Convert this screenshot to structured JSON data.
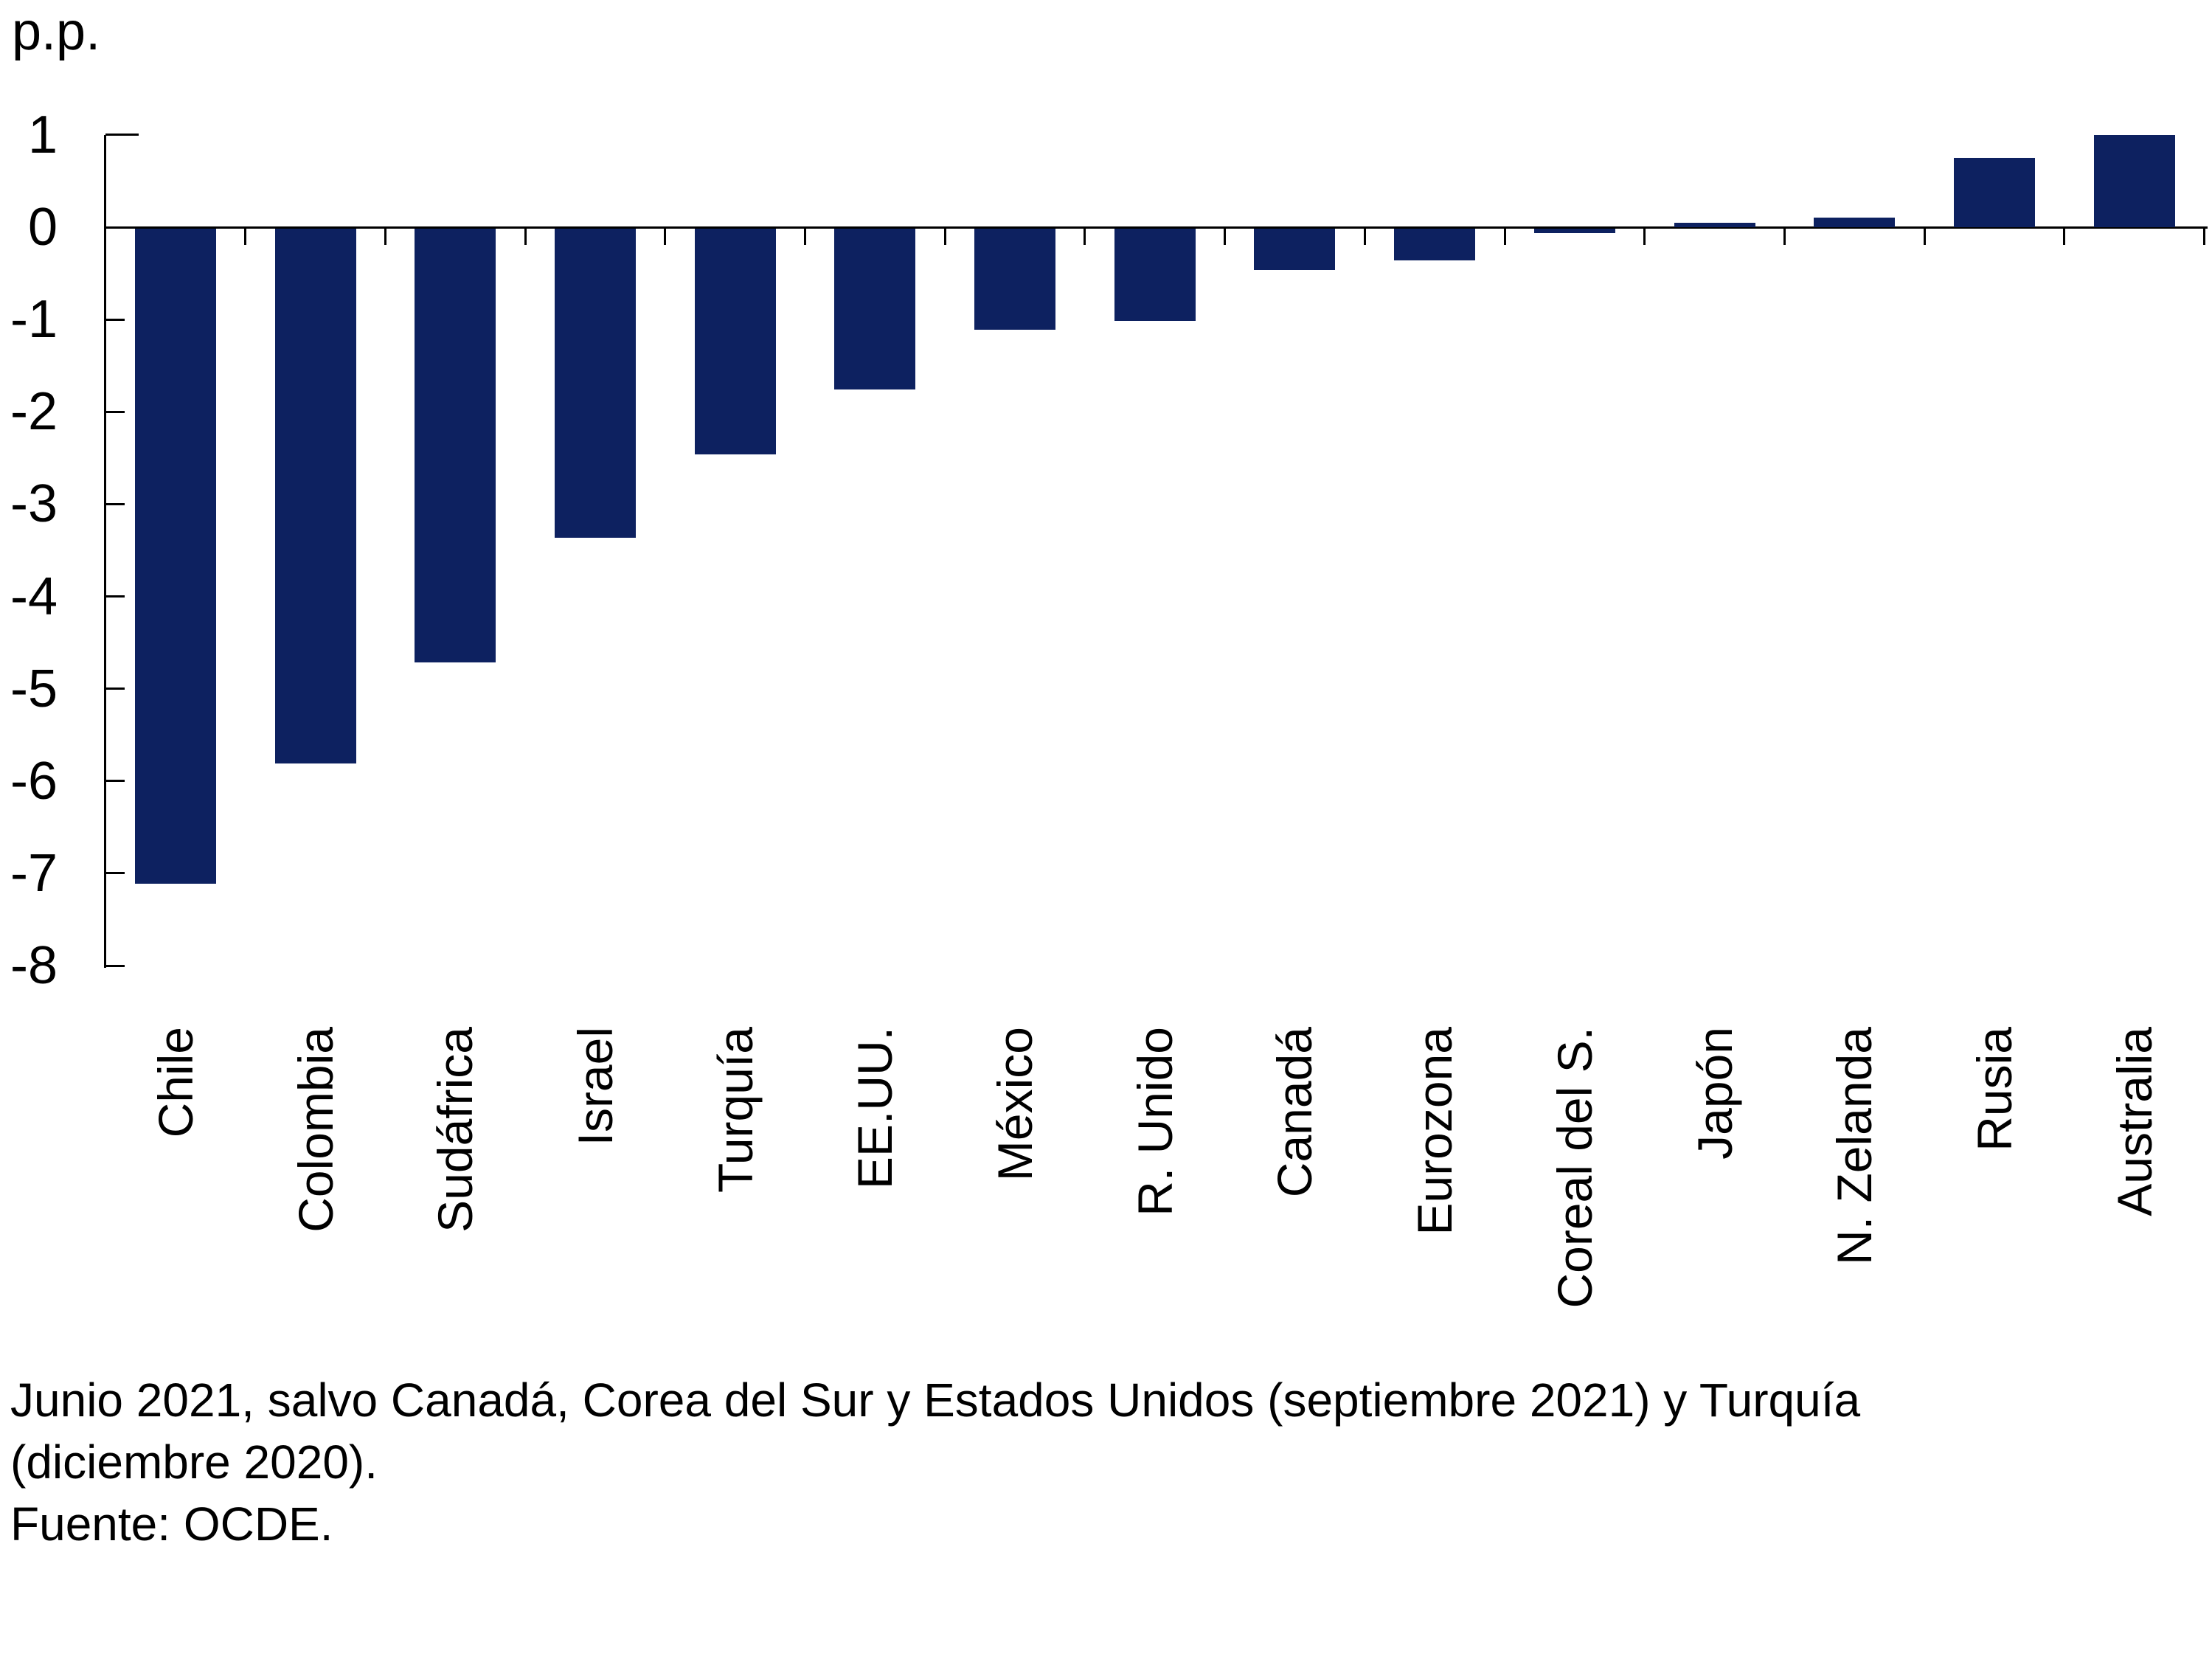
{
  "chart_data": {
    "type": "bar",
    "title": "",
    "unit_label": "p.p.",
    "categories": [
      "Chile",
      "Colombia",
      "Sudáfrica",
      "Israel",
      "Turquía",
      "EE.UU.",
      "México",
      "R. Unido",
      "Canadá",
      "Eurozona",
      "Coreal del S.",
      "Japón",
      "N. Zelanda",
      "Rusia",
      "Australia"
    ],
    "values": [
      -7.1,
      -5.8,
      -4.7,
      -3.35,
      -2.45,
      -1.75,
      -1.1,
      -1.0,
      -0.45,
      -0.35,
      -0.05,
      0.05,
      0.1,
      0.75,
      1.0
    ],
    "xlabel": "",
    "ylabel": "p.p.",
    "ylim": [
      -8,
      1
    ],
    "yticks": [
      1,
      0,
      -1,
      -2,
      -3,
      -4,
      -5,
      -6,
      -7,
      -8
    ],
    "grid": false,
    "legend_position": "none",
    "bar_color": "#0d2160",
    "axis_color": "#000000"
  },
  "footnote": {
    "line1": "Junio 2021, salvo Canadá, Corea del Sur y Estados Unidos (septiembre 2021) y Turquía",
    "line2": "(diciembre 2020).",
    "line3": "Fuente: OCDE."
  }
}
